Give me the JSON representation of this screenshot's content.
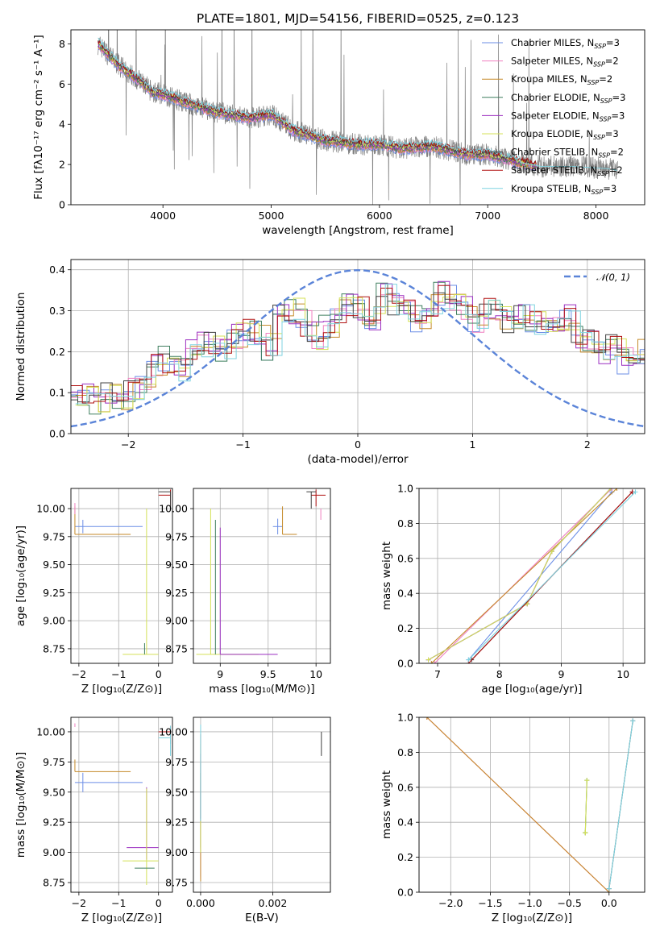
{
  "figure": {
    "title": "PLATE=1801, MJD=54156, FIBERID=0525, z=0.123"
  },
  "series_colors": {
    "Chabrier MILES": "#6b8ee6",
    "Salpeter MILES": "#f07fc0",
    "Kroupa MILES": "#c58a2a",
    "Chabrier ELODIE": "#3f7f5f",
    "Salpeter ELODIE": "#9b2fc0",
    "Kroupa ELODIE": "#d4e157",
    "Chabrier STELIB": "#404040",
    "Salpeter STELIB": "#b01010",
    "Kroupa STELIB": "#7fd3e0",
    "data": "#808080"
  },
  "chart_data": [
    {
      "id": "spectrum",
      "type": "line",
      "xlabel": "wavelength [Angstrom, rest frame]",
      "ylabel": "Flux [fλ10⁻¹⁷ erg cm⁻² s⁻¹ A⁻¹]",
      "xlim": [
        3150,
        8450
      ],
      "ylim": [
        0,
        8.7
      ],
      "xticks": [
        4000,
        5000,
        6000,
        7000,
        8000
      ],
      "yticks": [
        0,
        2,
        4,
        6,
        8
      ],
      "legend": "upper-right",
      "legend_entries": [
        {
          "name": "Chabrier MILES",
          "nssp": "3"
        },
        {
          "name": "Salpeter MILES",
          "nssp": "2"
        },
        {
          "name": "Kroupa MILES",
          "nssp": "2"
        },
        {
          "name": "Chabrier ELODIE",
          "nssp": "3"
        },
        {
          "name": "Salpeter ELODIE",
          "nssp": "3"
        },
        {
          "name": "Kroupa ELODIE",
          "nssp": "3"
        },
        {
          "name": "Chabrier STELIB",
          "nssp": "2"
        },
        {
          "name": "Salpeter STELIB",
          "nssp": "2"
        },
        {
          "name": "Kroupa STELIB",
          "nssp": "3"
        }
      ],
      "continuum": {
        "x": [
          3400,
          3600,
          3800,
          3900,
          4000,
          4200,
          4500,
          4800,
          5000,
          5200,
          5500,
          5800,
          6000,
          6200,
          6500,
          6800,
          7000,
          7300,
          7500,
          7800,
          8100,
          8200
        ],
        "y": [
          8.0,
          6.9,
          6.1,
          5.6,
          5.5,
          5.1,
          4.6,
          4.3,
          4.5,
          3.7,
          3.2,
          3.0,
          3.0,
          2.8,
          2.9,
          2.5,
          2.5,
          2.1,
          1.9,
          1.9,
          1.8,
          1.7
        ]
      }
    },
    {
      "id": "residuals",
      "type": "line",
      "xlabel": "(data-model)/error",
      "ylabel": "Normed distribution",
      "xlim": [
        -2.5,
        2.5
      ],
      "ylim": [
        0,
        0.425
      ],
      "xticks": [
        -2,
        -1,
        0,
        1,
        2
      ],
      "yticks": [
        0.0,
        0.1,
        0.2,
        0.3,
        0.4
      ],
      "legend": "upper-right",
      "normal_label": "𝒩(0, 1)",
      "bin_width": 0.1,
      "hist_base": [
        0.1,
        0.1,
        0.08,
        0.09,
        0.09,
        0.11,
        0.13,
        0.16,
        0.18,
        0.16,
        0.2,
        0.22,
        0.23,
        0.2,
        0.24,
        0.25,
        0.24,
        0.21,
        0.28,
        0.3,
        0.27,
        0.24,
        0.26,
        0.3,
        0.31,
        0.3,
        0.28,
        0.34,
        0.32,
        0.3,
        0.28,
        0.31,
        0.34,
        0.33,
        0.31,
        0.28,
        0.3,
        0.29,
        0.28,
        0.3,
        0.27,
        0.25,
        0.26,
        0.28,
        0.23,
        0.22,
        0.2,
        0.21,
        0.18,
        0.2,
        0.18,
        0.17,
        0.15,
        0.15,
        0.16,
        0.14,
        0.13,
        0.12,
        0.11,
        0.08,
        0.07,
        0.08,
        0.06,
        0.07,
        0.05,
        0.05,
        0.06,
        0.05,
        0.04,
        0.03,
        0.03,
        0.02
      ]
    },
    {
      "id": "age-vs-Z",
      "type": "scatter",
      "xlabel": "Z [log₁₀(Z/Z⊙)]",
      "ylabel": "age  [log₁₀(age/yr)]",
      "xlim": [
        -2.2,
        0.35
      ],
      "ylim": [
        8.62,
        10.18
      ],
      "xticks": [
        -2,
        -1,
        0
      ],
      "yticks": [
        8.75,
        9.0,
        9.25,
        9.5,
        9.75,
        10.0
      ]
    },
    {
      "id": "age-vs-mass",
      "type": "scatter",
      "xlabel": "mass [log₁₀(M/M⊙)]",
      "ylabel": "",
      "xlim": [
        8.72,
        10.15
      ],
      "ylim": [
        8.62,
        10.18
      ],
      "xticks": [
        9.0,
        9.5,
        10.0
      ],
      "yticks": [
        8.75,
        9.0,
        9.25,
        9.5,
        9.75,
        10.0
      ]
    },
    {
      "id": "weight-vs-age",
      "type": "line",
      "xlabel": "age  [log₁₀(age/yr)]",
      "ylabel": "mass weight",
      "xlim": [
        6.7,
        10.35
      ],
      "ylim": [
        0,
        1.0
      ],
      "xticks": [
        7,
        8,
        9,
        10
      ],
      "yticks": [
        0.0,
        0.2,
        0.4,
        0.6,
        0.8,
        1.0
      ],
      "series": [
        {
          "name": "Chabrier MILES",
          "x": [
            7.5,
            9.82
          ],
          "y": [
            0.02,
            0.98
          ]
        },
        {
          "name": "Salpeter MILES",
          "x": [
            6.95,
            9.82
          ],
          "y": [
            0.0,
            1.0
          ]
        },
        {
          "name": "Kroupa MILES",
          "x": [
            6.9,
            9.9
          ],
          "y": [
            0.0,
            1.0
          ]
        },
        {
          "name": "Chabrier ELODIE",
          "x": [
            6.85,
            8.45,
            8.85,
            9.8
          ],
          "y": [
            0.02,
            0.34,
            0.64,
            1.0
          ]
        },
        {
          "name": "Salpeter ELODIE",
          "x": [
            6.85,
            8.45,
            8.85,
            9.8
          ],
          "y": [
            0.02,
            0.34,
            0.64,
            1.0
          ]
        },
        {
          "name": "Kroupa ELODIE",
          "x": [
            6.85,
            8.45,
            8.85,
            9.8
          ],
          "y": [
            0.02,
            0.34,
            0.64,
            1.0
          ]
        },
        {
          "name": "Chabrier STELIB",
          "x": [
            7.55,
            10.15
          ],
          "y": [
            0.02,
            0.98
          ]
        },
        {
          "name": "Salpeter STELIB",
          "x": [
            7.5,
            10.15
          ],
          "y": [
            0.0,
            0.98
          ]
        },
        {
          "name": "Kroupa STELIB",
          "x": [
            7.5,
            10.2
          ],
          "y": [
            0.02,
            0.98
          ]
        }
      ]
    },
    {
      "id": "mass-vs-Z",
      "type": "scatter",
      "xlabel": "Z [log₁₀(Z/Z⊙)]",
      "ylabel": "mass [log₁₀(M/M⊙)]",
      "xlim": [
        -2.2,
        0.35
      ],
      "ylim": [
        8.67,
        10.12
      ],
      "xticks": [
        -2,
        -1,
        0
      ],
      "yticks": [
        8.75,
        9.0,
        9.25,
        9.5,
        9.75,
        10.0
      ]
    },
    {
      "id": "mass-vs-ebv",
      "type": "scatter",
      "xlabel": "E(B-V)",
      "ylabel": "",
      "xlim": [
        -0.0002,
        0.0036
      ],
      "ylim": [
        8.67,
        10.12
      ],
      "xticks": [
        0.0,
        0.002
      ],
      "xticklabels": [
        "0.000",
        "0.002"
      ],
      "yticks": [
        8.75,
        9.0,
        9.25,
        9.5,
        9.75,
        10.0
      ]
    },
    {
      "id": "weight-vs-Z",
      "type": "line",
      "xlabel": "Z [log₁₀(Z/Z⊙)]",
      "ylabel": "mass weight",
      "xlim": [
        -2.4,
        0.45
      ],
      "ylim": [
        0,
        1.0
      ],
      "xticks": [
        -2.0,
        -1.5,
        -1.0,
        -0.5,
        0.0
      ],
      "yticks": [
        0.0,
        0.2,
        0.4,
        0.6,
        0.8,
        1.0
      ],
      "series": [
        {
          "name": "Salpeter MILES",
          "x": [
            -2.3,
            0.0
          ],
          "y": [
            1.0,
            0.0
          ]
        },
        {
          "name": "Kroupa MILES",
          "x": [
            -2.3,
            0.0
          ],
          "y": [
            1.0,
            0.0
          ]
        },
        {
          "name": "Chabrier ELODIE",
          "x": [
            -0.3,
            -0.28,
            -0.3
          ],
          "y": [
            0.34,
            0.64,
            0.34
          ]
        },
        {
          "name": "Kroupa ELODIE",
          "x": [
            -0.3,
            -0.28,
            -0.3
          ],
          "y": [
            0.34,
            0.64,
            0.34
          ]
        },
        {
          "name": "Chabrier STELIB",
          "x": [
            0.0,
            0.3
          ],
          "y": [
            0.02,
            0.98
          ]
        },
        {
          "name": "Kroupa STELIB",
          "x": [
            0.0,
            0.3
          ],
          "y": [
            0.02,
            0.98
          ]
        }
      ]
    }
  ]
}
